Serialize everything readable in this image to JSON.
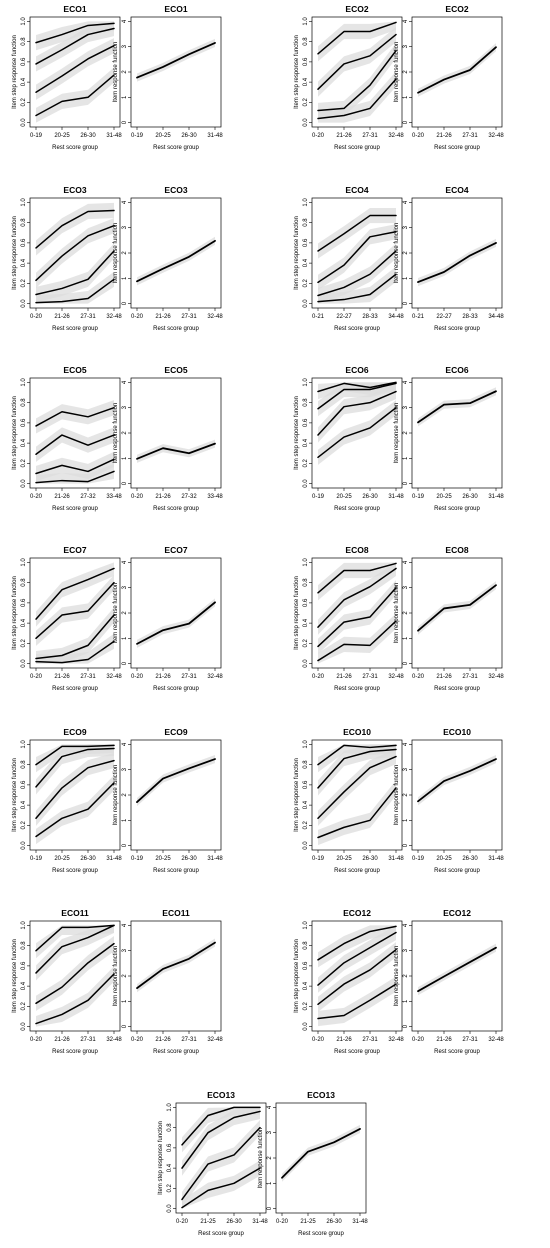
{
  "figure": {
    "step_ylabel": "Item step response function",
    "irf_ylabel": "Item response function",
    "xlabel": "Rest score group",
    "step_yticks": [
      "0.0",
      "0.2",
      "0.4",
      "0.6",
      "0.8",
      "1.0"
    ],
    "irf_yticks": [
      "0",
      "1",
      "2",
      "3",
      "4"
    ],
    "line_color": "#000000",
    "band_color": "#dcdcdc"
  },
  "chart_data": [
    {
      "type": "line",
      "kind": "step",
      "title": "ECO1",
      "categories": [
        "0-19",
        "20-25",
        "26-30",
        "31-48"
      ],
      "ylim": [
        0,
        1
      ],
      "series": [
        {
          "values": [
            0.07,
            0.21,
            0.25,
            0.47
          ]
        },
        {
          "values": [
            0.3,
            0.46,
            0.63,
            0.76
          ]
        },
        {
          "values": [
            0.58,
            0.72,
            0.87,
            0.93
          ]
        },
        {
          "values": [
            0.79,
            0.87,
            0.96,
            0.98
          ]
        }
      ]
    },
    {
      "type": "line",
      "kind": "irf",
      "title": "ECO1",
      "categories": [
        "0-19",
        "20-25",
        "26-30",
        "31-48"
      ],
      "ylim": [
        0,
        4
      ],
      "series": [
        {
          "values": [
            1.78,
            2.2,
            2.7,
            3.15
          ]
        }
      ]
    },
    {
      "type": "line",
      "kind": "step",
      "title": "ECO2",
      "categories": [
        "0-20",
        "21-26",
        "27-31",
        "32-48"
      ],
      "ylim": [
        0,
        1
      ],
      "series": [
        {
          "values": [
            0.04,
            0.07,
            0.14,
            0.43
          ]
        },
        {
          "values": [
            0.12,
            0.14,
            0.37,
            0.71
          ]
        },
        {
          "values": [
            0.33,
            0.58,
            0.66,
            0.87
          ]
        },
        {
          "values": [
            0.68,
            0.9,
            0.9,
            0.99
          ]
        }
      ]
    },
    {
      "type": "line",
      "kind": "irf",
      "title": "ECO2",
      "categories": [
        "0-20",
        "21-26",
        "27-31",
        "32-48"
      ],
      "ylim": [
        0,
        4
      ],
      "series": [
        {
          "values": [
            1.18,
            1.7,
            2.08,
            2.98
          ]
        }
      ]
    },
    {
      "type": "line",
      "kind": "step",
      "title": "ECO3",
      "categories": [
        "0-20",
        "21-26",
        "27-31",
        "32-48"
      ],
      "ylim": [
        0,
        1
      ],
      "series": [
        {
          "values": [
            0.01,
            0.02,
            0.05,
            0.24
          ]
        },
        {
          "values": [
            0.09,
            0.15,
            0.24,
            0.52
          ]
        },
        {
          "values": [
            0.23,
            0.47,
            0.67,
            0.77
          ]
        },
        {
          "values": [
            0.55,
            0.77,
            0.91,
            0.92
          ]
        }
      ]
    },
    {
      "type": "line",
      "kind": "irf",
      "title": "ECO3",
      "categories": [
        "0-20",
        "21-26",
        "27-31",
        "32-48"
      ],
      "ylim": [
        0,
        4
      ],
      "series": [
        {
          "values": [
            0.88,
            1.38,
            1.85,
            2.48
          ]
        }
      ]
    },
    {
      "type": "line",
      "kind": "step",
      "title": "ECO4",
      "categories": [
        "0-21",
        "22-27",
        "28-33",
        "34-48"
      ],
      "ylim": [
        0,
        1
      ],
      "series": [
        {
          "values": [
            0.02,
            0.04,
            0.09,
            0.29
          ]
        },
        {
          "values": [
            0.08,
            0.16,
            0.29,
            0.52
          ]
        },
        {
          "values": [
            0.21,
            0.38,
            0.66,
            0.71
          ]
        },
        {
          "values": [
            0.52,
            0.69,
            0.87,
            0.87
          ]
        }
      ]
    },
    {
      "type": "line",
      "kind": "irf",
      "title": "ECO4",
      "categories": [
        "0-21",
        "22-27",
        "28-33",
        "34-48"
      ],
      "ylim": [
        0,
        4
      ],
      "series": [
        {
          "values": [
            0.85,
            1.25,
            1.9,
            2.4
          ]
        }
      ]
    },
    {
      "type": "line",
      "kind": "step",
      "title": "ECO5",
      "categories": [
        "0-20",
        "21-26",
        "27-32",
        "33-48"
      ],
      "ylim": [
        0,
        1
      ],
      "series": [
        {
          "values": [
            0.01,
            0.03,
            0.02,
            0.12
          ]
        },
        {
          "values": [
            0.1,
            0.18,
            0.12,
            0.24
          ]
        },
        {
          "values": [
            0.29,
            0.48,
            0.38,
            0.48
          ]
        },
        {
          "values": [
            0.57,
            0.71,
            0.66,
            0.75
          ]
        }
      ]
    },
    {
      "type": "line",
      "kind": "irf",
      "title": "ECO5",
      "categories": [
        "0-20",
        "21-26",
        "27-32",
        "33-48"
      ],
      "ylim": [
        0,
        4
      ],
      "series": [
        {
          "values": [
            0.98,
            1.4,
            1.2,
            1.58
          ]
        }
      ]
    },
    {
      "type": "line",
      "kind": "step",
      "title": "ECO6",
      "categories": [
        "0-19",
        "20-25",
        "26-30",
        "31-48"
      ],
      "ylim": [
        0,
        1
      ],
      "series": [
        {
          "values": [
            0.26,
            0.46,
            0.55,
            0.75
          ]
        },
        {
          "values": [
            0.48,
            0.76,
            0.8,
            0.91
          ]
        },
        {
          "values": [
            0.74,
            0.93,
            0.93,
            0.99
          ]
        },
        {
          "values": [
            0.91,
            0.99,
            0.95,
            1.0
          ]
        }
      ]
    },
    {
      "type": "line",
      "kind": "irf",
      "title": "ECO6",
      "categories": [
        "0-19",
        "20-25",
        "26-30",
        "31-48"
      ],
      "ylim": [
        0,
        4
      ],
      "series": [
        {
          "values": [
            2.42,
            3.12,
            3.18,
            3.65
          ]
        }
      ]
    },
    {
      "type": "line",
      "kind": "step",
      "title": "ECO7",
      "categories": [
        "0-20",
        "21-26",
        "27-31",
        "32-48"
      ],
      "ylim": [
        0,
        1
      ],
      "series": [
        {
          "values": [
            0.02,
            0.01,
            0.04,
            0.22
          ]
        },
        {
          "values": [
            0.05,
            0.08,
            0.18,
            0.48
          ]
        },
        {
          "values": [
            0.25,
            0.48,
            0.52,
            0.8
          ]
        },
        {
          "values": [
            0.44,
            0.73,
            0.83,
            0.94
          ]
        }
      ]
    },
    {
      "type": "line",
      "kind": "irf",
      "title": "ECO7",
      "categories": [
        "0-20",
        "21-26",
        "27-31",
        "32-48"
      ],
      "ylim": [
        0,
        4
      ],
      "series": [
        {
          "values": [
            0.78,
            1.32,
            1.58,
            2.42
          ]
        }
      ]
    },
    {
      "type": "line",
      "kind": "step",
      "title": "ECO8",
      "categories": [
        "0-20",
        "21-26",
        "27-31",
        "32-48"
      ],
      "ylim": [
        0,
        1
      ],
      "series": [
        {
          "values": [
            0.03,
            0.19,
            0.18,
            0.42
          ]
        },
        {
          "values": [
            0.17,
            0.41,
            0.46,
            0.75
          ]
        },
        {
          "values": [
            0.36,
            0.63,
            0.76,
            0.94
          ]
        },
        {
          "values": [
            0.7,
            0.92,
            0.92,
            0.99
          ]
        }
      ]
    },
    {
      "type": "line",
      "kind": "irf",
      "title": "ECO8",
      "categories": [
        "0-20",
        "21-26",
        "27-31",
        "32-48"
      ],
      "ylim": [
        0,
        4
      ],
      "series": [
        {
          "values": [
            1.3,
            2.18,
            2.32,
            3.1
          ]
        }
      ]
    },
    {
      "type": "line",
      "kind": "step",
      "title": "ECO9",
      "categories": [
        "0-19",
        "20-25",
        "26-30",
        "31-48"
      ],
      "ylim": [
        0,
        1
      ],
      "series": [
        {
          "values": [
            0.09,
            0.27,
            0.36,
            0.62
          ]
        },
        {
          "values": [
            0.27,
            0.57,
            0.77,
            0.84
          ]
        },
        {
          "values": [
            0.58,
            0.88,
            0.95,
            0.96
          ]
        },
        {
          "values": [
            0.8,
            0.98,
            0.98,
            0.99
          ]
        }
      ]
    },
    {
      "type": "line",
      "kind": "irf",
      "title": "ECO9",
      "categories": [
        "0-19",
        "20-25",
        "26-30",
        "31-48"
      ],
      "ylim": [
        0,
        4
      ],
      "series": [
        {
          "values": [
            1.72,
            2.65,
            3.05,
            3.42
          ]
        }
      ]
    },
    {
      "type": "line",
      "kind": "step",
      "title": "ECO10",
      "categories": [
        "0-19",
        "20-25",
        "26-30",
        "31-48"
      ],
      "ylim": [
        0,
        1
      ],
      "series": [
        {
          "values": [
            0.08,
            0.18,
            0.25,
            0.57
          ]
        },
        {
          "values": [
            0.27,
            0.53,
            0.77,
            0.88
          ]
        },
        {
          "values": [
            0.57,
            0.86,
            0.93,
            0.95
          ]
        },
        {
          "values": [
            0.8,
            0.99,
            0.97,
            0.99
          ]
        }
      ]
    },
    {
      "type": "line",
      "kind": "irf",
      "title": "ECO10",
      "categories": [
        "0-19",
        "20-25",
        "26-30",
        "31-48"
      ],
      "ylim": [
        0,
        4
      ],
      "series": [
        {
          "values": [
            1.75,
            2.55,
            2.95,
            3.42
          ]
        }
      ]
    },
    {
      "type": "line",
      "kind": "step",
      "title": "ECO11",
      "categories": [
        "0-20",
        "21-26",
        "27-31",
        "32-48"
      ],
      "ylim": [
        0,
        1
      ],
      "series": [
        {
          "values": [
            0.03,
            0.12,
            0.26,
            0.52
          ]
        },
        {
          "values": [
            0.23,
            0.39,
            0.63,
            0.82
          ]
        },
        {
          "values": [
            0.53,
            0.79,
            0.88,
            1.0
          ]
        },
        {
          "values": [
            0.75,
            0.98,
            0.98,
            1.0
          ]
        }
      ]
    },
    {
      "type": "line",
      "kind": "irf",
      "title": "ECO11",
      "categories": [
        "0-20",
        "21-26",
        "27-31",
        "32-48"
      ],
      "ylim": [
        0,
        4
      ],
      "series": [
        {
          "values": [
            1.52,
            2.28,
            2.68,
            3.32
          ]
        }
      ]
    },
    {
      "type": "line",
      "kind": "step",
      "title": "ECO12",
      "categories": [
        "0-20",
        "21-26",
        "27-31",
        "32-48"
      ],
      "ylim": [
        0,
        1
      ],
      "series": [
        {
          "values": [
            0.08,
            0.11,
            0.26,
            0.42
          ]
        },
        {
          "values": [
            0.22,
            0.42,
            0.56,
            0.76
          ]
        },
        {
          "values": [
            0.41,
            0.63,
            0.78,
            0.93
          ]
        },
        {
          "values": [
            0.66,
            0.82,
            0.94,
            0.99
          ]
        }
      ]
    },
    {
      "type": "line",
      "kind": "irf",
      "title": "ECO12",
      "categories": [
        "0-20",
        "21-26",
        "27-31",
        "32-48"
      ],
      "ylim": [
        0,
        4
      ],
      "series": [
        {
          "values": [
            1.4,
            1.98,
            2.55,
            3.12
          ]
        }
      ]
    },
    {
      "type": "line",
      "kind": "step",
      "title": "ECO13",
      "categories": [
        "0-20",
        "21-25",
        "26-30",
        "31-48"
      ],
      "ylim": [
        0,
        1
      ],
      "series": [
        {
          "values": [
            0.01,
            0.18,
            0.25,
            0.4
          ]
        },
        {
          "values": [
            0.09,
            0.44,
            0.53,
            0.8
          ]
        },
        {
          "values": [
            0.4,
            0.75,
            0.9,
            0.96
          ]
        },
        {
          "values": [
            0.63,
            0.92,
            1.0,
            1.0
          ]
        }
      ]
    },
    {
      "type": "line",
      "kind": "irf",
      "title": "ECO13",
      "categories": [
        "0-20",
        "21-25",
        "26-30",
        "31-48"
      ],
      "ylim": [
        0,
        4
      ],
      "series": [
        {
          "values": [
            1.22,
            2.25,
            2.62,
            3.15
          ]
        }
      ]
    }
  ]
}
